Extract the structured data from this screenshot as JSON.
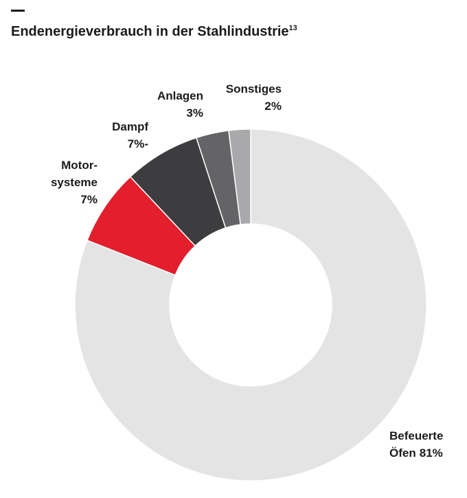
{
  "chart_data": {
    "type": "donut",
    "title": "Endenergieverbrauch in der Stahlindustrie",
    "title_footnote": "13",
    "categories": [
      [
        "Befeuerte",
        "Öfen"
      ],
      [
        "Motor-",
        "systeme"
      ],
      [
        "Dampf"
      ],
      [
        "Anlagen"
      ],
      [
        "Sonstiges"
      ]
    ],
    "values": [
      81,
      7,
      7,
      3,
      2
    ],
    "value_labels": [
      "81%",
      "7%",
      "7%-",
      "3%",
      "2%"
    ],
    "colors": [
      "#e4e4e5",
      "#e31e2d",
      "#3d3c3e",
      "#646466",
      "#a9a9ab"
    ]
  }
}
